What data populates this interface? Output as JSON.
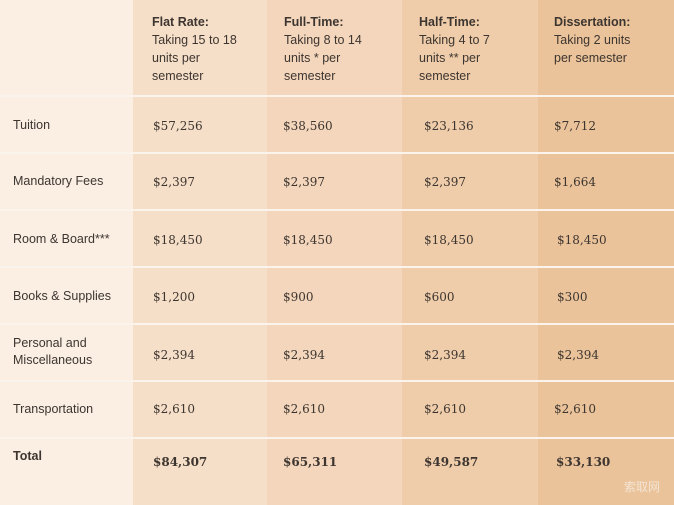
{
  "columns": [
    {
      "title": "Flat Rate:",
      "subtitle": "Taking 15 to 18\nunits per\nsemester"
    },
    {
      "title": "Full-Time:",
      "subtitle": "Taking 8 to 14\nunits * per\nsemester"
    },
    {
      "title": "Half-Time:",
      "subtitle": "Taking 4 to 7\nunits ** per\nsemester"
    },
    {
      "title": "Dissertation:",
      "subtitle": "Taking 2 units\nper semester"
    }
  ],
  "rows": [
    {
      "label": "Tuition",
      "values": [
        "$57,256",
        "$38,560",
        "$23,136",
        "$7,712"
      ]
    },
    {
      "label": "Mandatory Fees",
      "values": [
        "$2,397",
        "$2,397",
        "$2,397",
        "$1,664"
      ]
    },
    {
      "label": "Room & Board***",
      "values": [
        "$18,450",
        "$18,450",
        "$18,450",
        "$18,450"
      ]
    },
    {
      "label": "Books & Supplies",
      "values": [
        "$1,200",
        "$900",
        "$600",
        "$300"
      ]
    },
    {
      "label": "Personal and\nMiscellaneous",
      "values": [
        "$2,394",
        "$2,394",
        "$2,394",
        "$2,394"
      ]
    },
    {
      "label": "Transportation",
      "values": [
        "$2,610",
        "$2,610",
        "$2,610",
        "$2,610"
      ]
    },
    {
      "label": "Total",
      "values": [
        "$84,307",
        "$65,311",
        "$49,587",
        "$33,130"
      ]
    }
  ],
  "watermark": "索取网"
}
